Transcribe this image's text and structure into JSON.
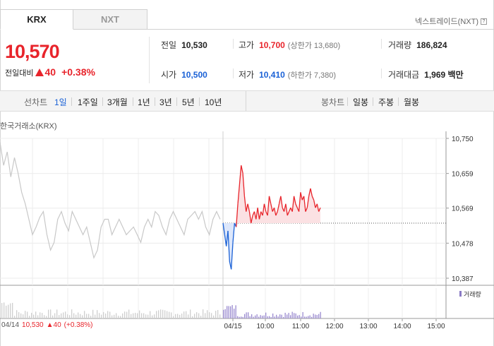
{
  "market_tabs": [
    {
      "label": "KRX",
      "active": true
    },
    {
      "label": "NXT",
      "active": false
    }
  ],
  "nxt_link": {
    "label": "넥스트레이드(NXT)",
    "help": "?"
  },
  "price": {
    "current": "10,570",
    "change_label": "전일대비",
    "change": "40",
    "change_pct": "+0.38%",
    "direction": "up"
  },
  "stats": {
    "prev_close": {
      "label": "전일",
      "value": "10,530"
    },
    "open": {
      "label": "시가",
      "value": "10,500"
    },
    "high": {
      "label": "고가",
      "value": "10,700",
      "sub": "(상한가 13,680)"
    },
    "low": {
      "label": "저가",
      "value": "10,410",
      "sub": "(하한가 7,380)"
    },
    "volume": {
      "label": "거래량",
      "value": "186,824"
    },
    "amount": {
      "label": "거래대금",
      "value": "1,969 백만"
    }
  },
  "period_bar": {
    "line_label": "선차트",
    "line_periods": [
      "1일",
      "1주일",
      "3개월",
      "1년",
      "3년",
      "5년",
      "10년"
    ],
    "selected": "1일",
    "candle_label": "봉차트",
    "candle_periods": [
      "일봉",
      "주봉",
      "월봉"
    ]
  },
  "chart_title": "한국거래소(KRX)",
  "chart_data": {
    "type": "line",
    "y_ticks": [
      "10,750",
      "10,659",
      "10,569",
      "10,478",
      "10,387"
    ],
    "ylim": [
      10387,
      10750
    ],
    "x_ticks": [
      "04/14",
      "04/15",
      "10:00",
      "11:00",
      "12:00",
      "13:00",
      "14:00",
      "15:00"
    ],
    "reference_line": 10530,
    "volume_label": "거래량",
    "series": [
      {
        "values": [
          10740,
          10680,
          10715,
          10650,
          10700,
          10660,
          10610,
          10580,
          10540,
          10500,
          10520,
          10545,
          10560,
          10500,
          10460,
          10480,
          10540,
          10560,
          10530,
          10510,
          10560,
          10540,
          10520,
          10500,
          10520,
          10480,
          10440,
          10460,
          10520,
          10540,
          10540,
          10500,
          10520,
          10540,
          10520,
          10500,
          10510,
          10520,
          10500,
          10480,
          10520,
          10540,
          10520,
          10560,
          10550,
          10520,
          10500,
          10540,
          10560,
          10540,
          10520,
          10500,
          10540,
          10550,
          10560,
          10540,
          10560,
          10520,
          10500,
          10540,
          10560,
          10540
        ]
      },
      {
        "values": [
          10530,
          10500,
          10470,
          10510,
          10430,
          10410,
          10480,
          10530,
          10520,
          10580,
          10630,
          10680,
          10660,
          10600,
          10560,
          10580,
          10560,
          10530,
          10550,
          10560,
          10540,
          10570,
          10540,
          10560,
          10550,
          10580,
          10560,
          10550,
          10600,
          10580,
          10560,
          10570,
          10550,
          10560,
          10580,
          10600,
          10570,
          10560,
          10580,
          10550,
          10560,
          10570,
          10560,
          10600,
          10580,
          10570,
          10560,
          10610,
          10590,
          10600,
          10560,
          10570,
          10600,
          10620,
          10600,
          10590,
          10570,
          10580,
          10560,
          10570
        ]
      }
    ]
  },
  "footer": {
    "date": "04/14",
    "prev_value": "10,530",
    "prev_change": "▲40",
    "prev_pct": "(+0.38%)"
  }
}
